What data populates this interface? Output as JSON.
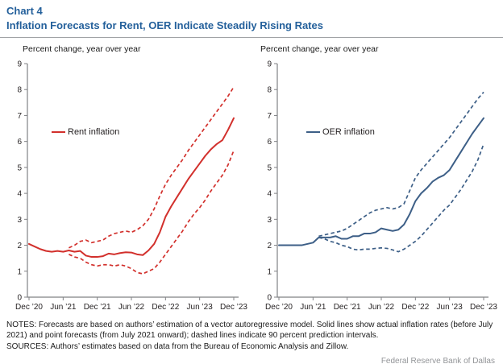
{
  "header": {
    "chart_number": "Chart 4",
    "title": "Inflation Forecasts for Rent, OER Indicate Steadily Rising Rates"
  },
  "colors": {
    "title_blue": "#24609b",
    "rent_red": "#d2302c",
    "oer_navy": "#3d5f87",
    "axis_gray": "#808285",
    "footer_gray": "#939598"
  },
  "chart_data": [
    {
      "type": "line",
      "axis_title": "Percent change, year over year",
      "legend": "Rent inflation",
      "color": "#d2302c",
      "ylim": [
        0,
        9
      ],
      "yticks": [
        0,
        1,
        2,
        3,
        4,
        5,
        6,
        7,
        8,
        9
      ],
      "x_tick_labels": [
        "Dec ’20",
        "Jun ’21",
        "Dec ’21",
        "Jun ’22",
        "Dec ’22",
        "Jun ’23",
        "Dec ’23"
      ],
      "x_tick_indices": [
        0,
        6,
        12,
        18,
        24,
        30,
        36
      ],
      "grid": false,
      "legend_position": "inside-left",
      "series": [
        {
          "name": "Rent inflation (actual and point forecast)",
          "style": "solid",
          "start_index": 0,
          "values": [
            2.05,
            1.95,
            1.85,
            1.78,
            1.75,
            1.78,
            1.75,
            1.8,
            1.75,
            1.78,
            1.6,
            1.55,
            1.55,
            1.58,
            1.68,
            1.65,
            1.7,
            1.73,
            1.72,
            1.65,
            1.62,
            1.8,
            2.05,
            2.5,
            3.1,
            3.5,
            3.85,
            4.2,
            4.55,
            4.85,
            5.15,
            5.45,
            5.7,
            5.9,
            6.05,
            6.45,
            6.9
          ]
        },
        {
          "name": "90 percent prediction interval, upper",
          "style": "dashed",
          "start_index": 7,
          "values": [
            1.9,
            2.0,
            2.15,
            2.2,
            2.1,
            2.15,
            2.2,
            2.35,
            2.45,
            2.5,
            2.55,
            2.5,
            2.6,
            2.75,
            3.0,
            3.4,
            3.9,
            4.35,
            4.7,
            5.0,
            5.3,
            5.65,
            5.95,
            6.25,
            6.55,
            6.85,
            7.15,
            7.45,
            7.75,
            8.1
          ]
        },
        {
          "name": "90 percent prediction interval, lower",
          "style": "dashed",
          "start_index": 7,
          "values": [
            1.65,
            1.55,
            1.5,
            1.35,
            1.25,
            1.2,
            1.25,
            1.25,
            1.2,
            1.25,
            1.2,
            1.1,
            0.95,
            0.9,
            1.0,
            1.1,
            1.35,
            1.65,
            1.95,
            2.25,
            2.55,
            2.9,
            3.2,
            3.45,
            3.75,
            4.1,
            4.4,
            4.7,
            5.1,
            5.65
          ]
        }
      ]
    },
    {
      "type": "line",
      "axis_title": "Percent change, year over year",
      "legend": "OER inflation",
      "color": "#3d5f87",
      "ylim": [
        0,
        9
      ],
      "yticks": [
        0,
        1,
        2,
        3,
        4,
        5,
        6,
        7,
        8,
        9
      ],
      "x_tick_labels": [
        "Dec ’20",
        "Jun ’21",
        "Dec ’21",
        "Jun ’22",
        "Dec ’22",
        "Jun ’23",
        "Dec ’23"
      ],
      "x_tick_indices": [
        0,
        6,
        12,
        18,
        24,
        30,
        36
      ],
      "grid": false,
      "legend_position": "inside-left",
      "series": [
        {
          "name": "OER inflation (actual and point forecast)",
          "style": "solid",
          "start_index": 0,
          "values": [
            2.0,
            2.0,
            2.0,
            2.0,
            2.0,
            2.05,
            2.1,
            2.3,
            2.3,
            2.3,
            2.35,
            2.25,
            2.25,
            2.35,
            2.35,
            2.45,
            2.45,
            2.5,
            2.65,
            2.6,
            2.55,
            2.6,
            2.8,
            3.2,
            3.7,
            4.0,
            4.2,
            4.45,
            4.6,
            4.7,
            4.9,
            5.25,
            5.6,
            5.95,
            6.3,
            6.6,
            6.9
          ]
        },
        {
          "name": "90 percent prediction interval, upper",
          "style": "dashed",
          "start_index": 7,
          "values": [
            2.35,
            2.4,
            2.45,
            2.5,
            2.55,
            2.65,
            2.8,
            2.95,
            3.1,
            3.25,
            3.35,
            3.4,
            3.45,
            3.4,
            3.45,
            3.6,
            4.1,
            4.6,
            4.9,
            5.15,
            5.4,
            5.65,
            5.9,
            6.15,
            6.45,
            6.75,
            7.05,
            7.35,
            7.65,
            7.9
          ]
        },
        {
          "name": "90 percent prediction interval, lower",
          "style": "dashed",
          "start_index": 7,
          "values": [
            2.3,
            2.25,
            2.15,
            2.1,
            2.0,
            1.95,
            1.85,
            1.82,
            1.85,
            1.85,
            1.88,
            1.9,
            1.88,
            1.82,
            1.75,
            1.85,
            2.0,
            2.15,
            2.35,
            2.6,
            2.85,
            3.1,
            3.35,
            3.55,
            3.85,
            4.15,
            4.5,
            4.85,
            5.3,
            5.9
          ]
        }
      ]
    }
  ],
  "notes": {
    "notes_line": "NOTES: Forecasts are based on authors’ estimation of a vector autoregressive model. Solid lines show actual inflation rates (before July 2021) and point forecasts (from July 2021 onward); dashed lines indicate 90 percent prediction intervals.",
    "sources_line": "SOURCES: Authors’ estimates based on data from the Bureau of Economic Analysis and Zillow."
  },
  "footer": {
    "attribution": "Federal Reserve Bank of Dallas"
  }
}
